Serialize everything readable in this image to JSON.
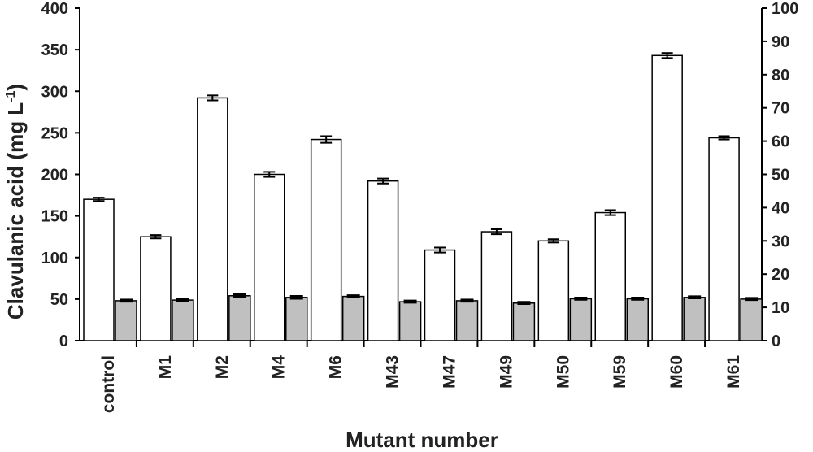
{
  "chart_data": {
    "type": "bar",
    "title": "",
    "xlabel": "Mutant number",
    "ylabel": {
      "main": "Clavulanic acid (mg L",
      "sup": "-1",
      "close": ")"
    },
    "ylim": [
      0,
      400
    ],
    "y_ticks": [
      "0",
      "50",
      "100",
      "150",
      "200",
      "250",
      "300",
      "350",
      "400"
    ],
    "y2lim": [
      0,
      100
    ],
    "y2_ticks": [
      "0",
      "10",
      "20",
      "30",
      "40",
      "50",
      "60",
      "70",
      "80",
      "90",
      "100"
    ],
    "categories": [
      "control",
      "M1",
      "M2",
      "M4",
      "M6",
      "M43",
      "M47",
      "M49",
      "M50",
      "M59",
      "M60",
      "M61"
    ],
    "series": [
      {
        "axis": "left",
        "color": "#ffffff",
        "values": [
          170,
          125,
          292,
          200,
          242,
          192,
          109,
          131,
          120,
          154,
          343,
          244
        ],
        "errors": [
          2,
          2,
          3,
          3,
          4,
          3,
          3,
          3,
          2,
          3,
          3,
          2
        ]
      },
      {
        "axis": "right",
        "color": "#c0c0c0",
        "values": [
          12.0,
          12.2,
          13.5,
          13.0,
          13.3,
          11.7,
          12.0,
          11.3,
          12.6,
          12.6,
          13.0,
          12.5
        ],
        "errors": [
          0.3,
          0.3,
          0.4,
          0.4,
          0.3,
          0.3,
          0.3,
          0.3,
          0.3,
          0.3,
          0.3,
          0.3
        ]
      }
    ],
    "grid": false,
    "legend": "none"
  }
}
